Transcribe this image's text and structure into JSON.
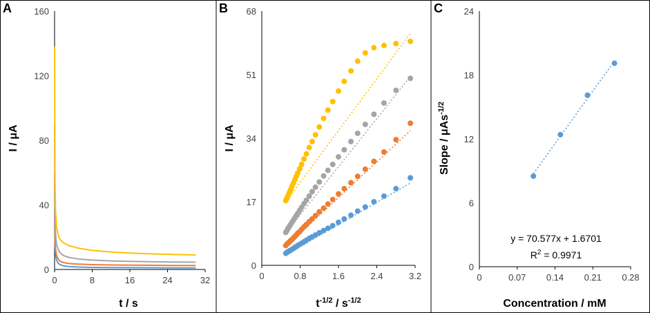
{
  "figure": {
    "colors": {
      "blue": "#5B9BD5",
      "orange": "#ED7D31",
      "gray": "#A5A5A5",
      "yellow": "#FFC000",
      "axis": "#000000",
      "tick_text": "#404040"
    }
  },
  "chart_data": [
    {
      "panel": "A",
      "type": "line",
      "title": "",
      "xlabel": "t / s",
      "ylabel": "I / μA",
      "xlim": [
        0,
        32
      ],
      "ylim": [
        0,
        160
      ],
      "xticks": [
        "0",
        "8",
        "16",
        "24",
        "32"
      ],
      "yticks": [
        "0",
        "40",
        "80",
        "120",
        "160"
      ],
      "series": [
        {
          "name": "blue",
          "color": "#5B9BD5",
          "x": [
            0.01,
            0.05,
            0.1,
            0.2,
            0.4,
            0.7,
            1,
            1.5,
            2,
            3,
            5,
            8,
            12,
            16,
            20,
            25,
            30
          ],
          "values": [
            38,
            22,
            14,
            9,
            6,
            4.2,
            3.3,
            2.6,
            2.2,
            1.8,
            1.5,
            1.3,
            1.2,
            1.1,
            1.05,
            1.0,
            1.0
          ]
        },
        {
          "name": "orange",
          "color": "#ED7D31",
          "x": [
            0.01,
            0.05,
            0.1,
            0.2,
            0.4,
            0.7,
            1,
            1.5,
            2,
            3,
            5,
            8,
            12,
            16,
            20,
            25,
            30
          ],
          "values": [
            60,
            30,
            20,
            13,
            9,
            6.8,
            5.5,
            4.7,
            4.2,
            3.7,
            3.3,
            3.0,
            2.8,
            2.7,
            2.6,
            2.5,
            2.5
          ]
        },
        {
          "name": "gray",
          "color": "#A5A5A5",
          "x": [
            0.01,
            0.05,
            0.1,
            0.2,
            0.4,
            0.7,
            1,
            1.5,
            2,
            3,
            5,
            8,
            12,
            16,
            20,
            25,
            30
          ],
          "values": [
            90,
            45,
            32,
            22,
            16,
            13,
            11,
            9.5,
            8.5,
            7.5,
            6.5,
            5.8,
            5.3,
            5.0,
            4.8,
            4.6,
            4.5
          ]
        },
        {
          "name": "yellow",
          "color": "#FFC000",
          "x": [
            0.01,
            0.05,
            0.1,
            0.2,
            0.4,
            0.7,
            1,
            1.5,
            2,
            3,
            5,
            8,
            12,
            16,
            20,
            25,
            30
          ],
          "values": [
            138,
            80,
            52,
            36,
            27,
            22,
            19.5,
            17.5,
            16.3,
            14.8,
            13.2,
            11.8,
            10.8,
            10.2,
            9.7,
            9.3,
            9.0
          ]
        }
      ]
    },
    {
      "panel": "B",
      "type": "scatter",
      "title": "",
      "xlabel": "t -1/2 / s-1/2",
      "xlabel_parts": {
        "base": "t",
        "sup1": "-1/2",
        "mid": " / s",
        "sup2": "-1/2"
      },
      "ylabel": "I / μA",
      "xlim": [
        0,
        3.2
      ],
      "ylim": [
        0,
        68
      ],
      "xticks": [
        "0",
        "0.8",
        "1.6",
        "2.4",
        "3.2"
      ],
      "yticks": [
        "0",
        "17",
        "34",
        "51",
        "68"
      ],
      "x": [
        0.5,
        0.52,
        0.54,
        0.56,
        0.58,
        0.6,
        0.63,
        0.66,
        0.69,
        0.72,
        0.75,
        0.79,
        0.83,
        0.88,
        0.93,
        0.99,
        1.05,
        1.12,
        1.2,
        1.29,
        1.38,
        1.48,
        1.6,
        1.72,
        1.86,
        2.0,
        2.16,
        2.34,
        2.55,
        2.8,
        3.1
      ],
      "series": [
        {
          "name": "blue",
          "color": "#5B9BD5",
          "values": [
            3.2,
            3.4,
            3.6,
            3.7,
            3.9,
            4.0,
            4.3,
            4.5,
            4.8,
            5.0,
            5.3,
            5.6,
            5.9,
            6.3,
            6.7,
            7.2,
            7.6,
            8.1,
            8.7,
            9.3,
            9.9,
            10.6,
            11.5,
            12.4,
            13.4,
            14.5,
            15.6,
            17.0,
            18.5,
            20.5,
            23.4
          ]
        },
        {
          "name": "orange",
          "color": "#ED7D31",
          "values": [
            5.3,
            5.6,
            5.8,
            6.1,
            6.3,
            6.6,
            6.9,
            7.3,
            7.7,
            8.1,
            8.6,
            9.0,
            9.6,
            10.3,
            10.9,
            11.7,
            12.4,
            13.3,
            14.3,
            15.3,
            16.4,
            17.6,
            19.1,
            20.5,
            22.1,
            23.8,
            25.7,
            27.8,
            30.3,
            33.6,
            38.0
          ]
        },
        {
          "name": "gray",
          "color": "#A5A5A5",
          "values": [
            8.8,
            9.2,
            9.7,
            10.1,
            10.5,
            10.9,
            11.5,
            12.1,
            12.7,
            13.3,
            13.9,
            14.7,
            15.5,
            16.5,
            17.4,
            18.5,
            19.7,
            20.9,
            22.3,
            23.9,
            25.4,
            27.0,
            29.0,
            30.9,
            33.1,
            35.3,
            37.7,
            40.4,
            43.4,
            46.8,
            50.0
          ]
        },
        {
          "name": "yellow",
          "color": "#FFC000",
          "values": [
            17.3,
            17.8,
            18.4,
            19.0,
            19.6,
            20.2,
            21.1,
            22.0,
            22.9,
            23.8,
            24.7,
            25.8,
            27.0,
            28.4,
            29.8,
            31.5,
            33.1,
            34.9,
            37.0,
            39.3,
            41.5,
            43.8,
            46.6,
            49.2,
            52.0,
            54.6,
            56.8,
            58.2,
            58.8,
            59.3,
            59.9
          ]
        }
      ],
      "trendlines": [
        {
          "name": "blue",
          "color": "#5B9BD5",
          "x": [
            0.5,
            3.1
          ],
          "values": [
            2.8,
            22.0
          ]
        },
        {
          "name": "orange",
          "color": "#ED7D31",
          "x": [
            0.5,
            3.1
          ],
          "values": [
            5.0,
            36.0
          ]
        },
        {
          "name": "gray",
          "color": "#A5A5A5",
          "x": [
            0.5,
            3.1
          ],
          "values": [
            8.6,
            50.5
          ]
        },
        {
          "name": "yellow",
          "color": "#FFC000",
          "x": [
            0.5,
            3.1
          ],
          "values": [
            17.0,
            62.0
          ]
        }
      ]
    },
    {
      "panel": "C",
      "type": "scatter",
      "title": "",
      "xlabel": "Concentration / mM",
      "ylabel": "Slope / μAs-1/2",
      "ylabel_parts": {
        "base": "Slope / μAs",
        "sup": "-1/2"
      },
      "xlim": [
        0,
        0.28
      ],
      "ylim": [
        0,
        24
      ],
      "xticks": [
        "0",
        "0.07",
        "0.14",
        "0.21",
        "0.28"
      ],
      "yticks": [
        "0",
        "6",
        "12",
        "18",
        "24"
      ],
      "series": [
        {
          "name": "data",
          "color": "#5B9BD5",
          "x": [
            0.1,
            0.15,
            0.2,
            0.25
          ],
          "values": [
            8.5,
            12.4,
            16.1,
            19.1
          ]
        }
      ],
      "trendline": {
        "x": [
          0.1,
          0.25
        ],
        "values": [
          8.728,
          19.315
        ],
        "color": "#5B9BD5"
      },
      "equation": "y = 70.577x + 1.6701",
      "r_squared": {
        "label": "R",
        "sup": "2",
        "value": " = 0.9971"
      }
    }
  ]
}
